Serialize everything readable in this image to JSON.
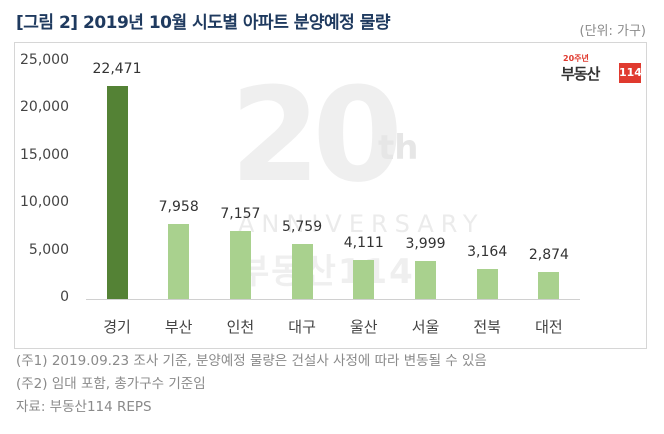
{
  "header": {
    "title": "[그림 2] 2019년 10월 시도별 아파트 분양예정 물량",
    "unit": "(단위: 가구)"
  },
  "logo": {
    "anniv": "20주년",
    "brand": "부동산",
    "badge": "114",
    "badge_color": "#e03a2f"
  },
  "watermark": {
    "big": "20",
    "th": "th",
    "anniversary": "ANNIVERSARY",
    "brand": "부동산114"
  },
  "chart_data": {
    "type": "bar",
    "title": "[그림 2] 2019년 10월 시도별 아파트 분양예정 물량",
    "xlabel": "",
    "ylabel": "(단위: 가구)",
    "ylim": [
      0,
      25000
    ],
    "yticks": [
      "0",
      "5,000",
      "10,000",
      "15,000",
      "20,000",
      "25,000"
    ],
    "grid": false,
    "legend": null,
    "categories": [
      "경기",
      "부산",
      "인천",
      "대구",
      "울산",
      "서울",
      "전북",
      "대전"
    ],
    "values": [
      22471,
      7958,
      7157,
      5759,
      4111,
      3999,
      3164,
      2874
    ],
    "labels": [
      "22,471",
      "7,958",
      "7,157",
      "5,759",
      "4,111",
      "3,999",
      "3,164",
      "2,874"
    ],
    "colors": {
      "highlight": "#548235",
      "default": "#a9d18e"
    }
  },
  "notes": [
    "(주1) 2019.09.23 조사 기준, 분양예정 물량은 건설사 사정에 따라 변동될 수 있음",
    "(주2) 임대 포함, 총가구수 기준임",
    "자료: 부동산114 REPS"
  ]
}
